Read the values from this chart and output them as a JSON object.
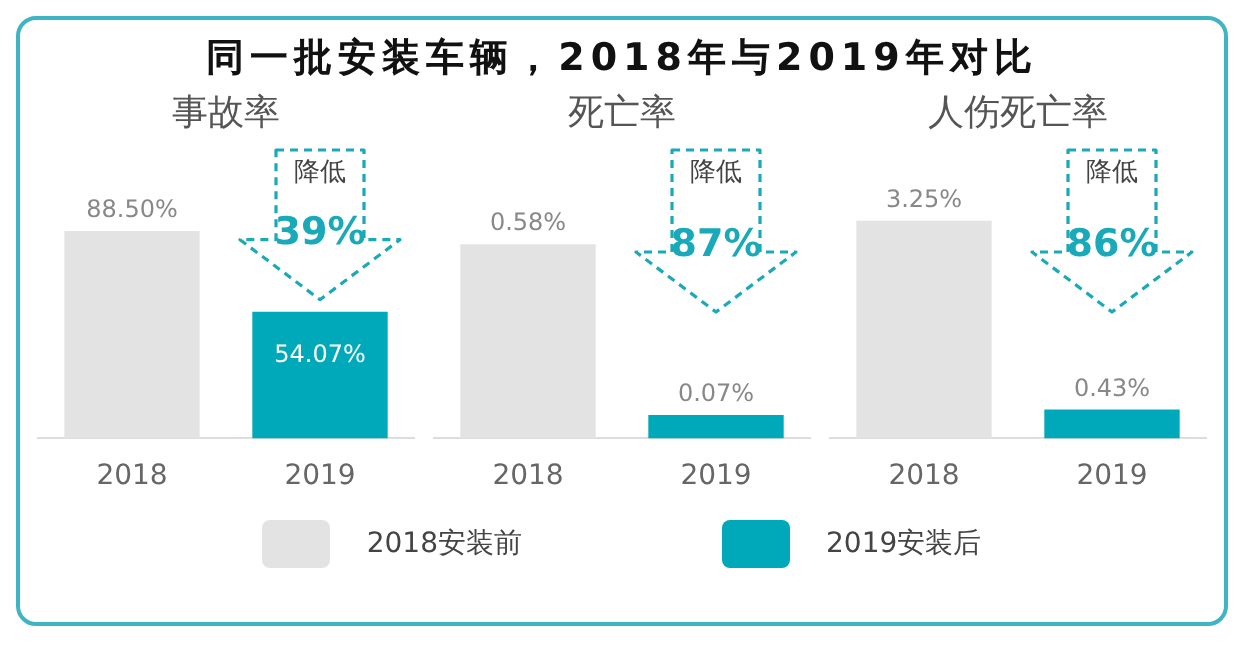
{
  "chart_data": [
    {
      "type": "bar",
      "title": "同一批安装车辆，2018年与2019年对比",
      "subtitle": "事故率",
      "categories": [
        "2018",
        "2019"
      ],
      "legend": "bottom",
      "tick_labels": "x",
      "annotations": [
        "降低",
        "39%"
      ],
      "series": [
        {
          "name": "2018安装前",
          "color": "#e3e3e3",
          "values": [
            88.5,
            null
          ],
          "value_labels": [
            "88.50%",
            null
          ]
        },
        {
          "name": "2019安装后",
          "color": "#00a9b9",
          "values": [
            null,
            54.07
          ],
          "value_labels": [
            null,
            "54.07%"
          ]
        }
      ]
    },
    {
      "type": "bar",
      "subtitle": "死亡率",
      "categories": [
        "2018",
        "2019"
      ],
      "tick_labels": "x",
      "annotations": [
        "降低",
        "87%"
      ],
      "series": [
        {
          "color": "#e3e3e3",
          "values": [
            0.58,
            null
          ],
          "value_labels": [
            "0.58%",
            null
          ]
        },
        {
          "color": "#00a9b9",
          "values": [
            null,
            0.07
          ],
          "value_labels": [
            null,
            "0.07%"
          ]
        }
      ]
    },
    {
      "type": "bar",
      "subtitle": "人伤死亡率",
      "categories": [
        "2018",
        "2019"
      ],
      "tick_labels": "x",
      "annotations": [
        "降低",
        "86%"
      ],
      "series": [
        {
          "color": "#e3e3e3",
          "values": [
            3.25,
            null
          ],
          "value_labels": [
            "3.25%",
            null
          ]
        },
        {
          "color": "#00a9b9",
          "values": [
            null,
            0.43
          ],
          "value_labels": [
            null,
            "0.43%"
          ]
        }
      ]
    }
  ]
}
